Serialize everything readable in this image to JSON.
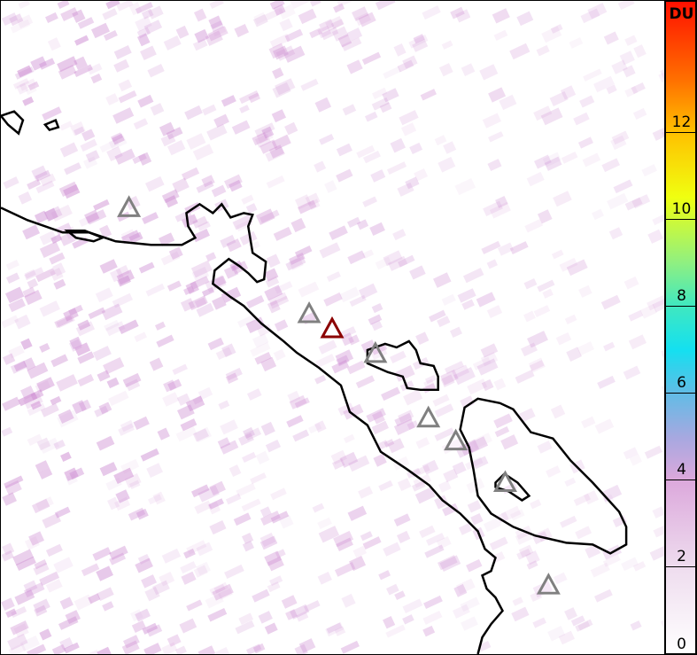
{
  "colorbar": {
    "unit": "DU",
    "range": [
      0,
      15
    ],
    "ticks": [
      "0",
      "2",
      "4",
      "6",
      "8",
      "10",
      "12"
    ],
    "colors": [
      "#ffffff",
      "#eedcee",
      "#dca8dc",
      "#60bce6",
      "#14e0f0",
      "#90f080",
      "#f0ff10",
      "#ff7000",
      "#ff1000"
    ]
  },
  "volcanoes": [
    {
      "status": "inactive",
      "color": "#808080"
    },
    {
      "status": "inactive",
      "color": "#808080"
    },
    {
      "status": "active",
      "color": "#8b0000"
    },
    {
      "status": "inactive",
      "color": "#808080"
    },
    {
      "status": "inactive",
      "color": "#808080"
    },
    {
      "status": "inactive",
      "color": "#808080"
    },
    {
      "status": "inactive",
      "color": "#808080"
    },
    {
      "status": "inactive",
      "color": "#808080"
    }
  ]
}
